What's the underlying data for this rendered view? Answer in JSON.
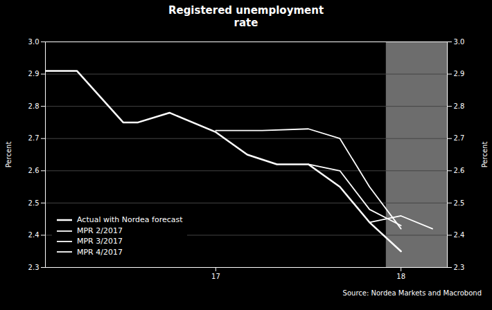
{
  "chart_data": {
    "type": "line",
    "title": "Registered unemployment\nrate",
    "ylabel": "Percent",
    "y2label": "Percent",
    "source": "Source: Nordea Markets and Macrobond",
    "xlim": [
      16.08,
      18.25
    ],
    "xticks": [
      17,
      18
    ],
    "ylim": [
      2.3,
      3.0
    ],
    "yticks": [
      2.3,
      2.4,
      2.5,
      2.6,
      2.7,
      2.8,
      2.9,
      {
        "value": 3.0,
        "label": "3.0"
      }
    ],
    "y2lim": [
      2.3,
      3.0
    ],
    "y2ticks": [
      2.3,
      2.4,
      2.5,
      2.6,
      2.7,
      2.8,
      2.9,
      {
        "value": 3.0,
        "label": "3.0"
      }
    ],
    "grid": true,
    "legend": "lower left",
    "shaded_region": {
      "x": [
        17.92,
        18.25
      ],
      "color": "#808080"
    },
    "series": [
      {
        "name": "Actual with Nordea forecast",
        "color": "#ffffff",
        "x": [
          16.08,
          16.25,
          16.5,
          16.58,
          16.75,
          17.0,
          17.17,
          17.33,
          17.5,
          17.67,
          17.83,
          18.0
        ],
        "values": [
          2.91,
          2.91,
          2.75,
          2.75,
          2.78,
          2.72,
          2.65,
          2.62,
          2.62,
          2.55,
          2.44,
          2.35
        ]
      },
      {
        "name": "MPR 2/2017",
        "color": "#ffffff",
        "x": [
          17.0,
          17.25,
          17.5,
          17.67,
          17.83,
          18.0
        ],
        "values": [
          2.725,
          2.725,
          2.73,
          2.7,
          2.55,
          2.42
        ]
      },
      {
        "name": "MPR 3/2017",
        "color": "#ffffff",
        "x": [
          17.5,
          17.67,
          17.83,
          18.0
        ],
        "values": [
          2.62,
          2.6,
          2.48,
          2.43
        ]
      },
      {
        "name": "MPR 4/2017",
        "color": "#ffffff",
        "x": [
          17.83,
          18.0,
          18.17
        ],
        "values": [
          2.44,
          2.46,
          2.42
        ]
      }
    ]
  }
}
